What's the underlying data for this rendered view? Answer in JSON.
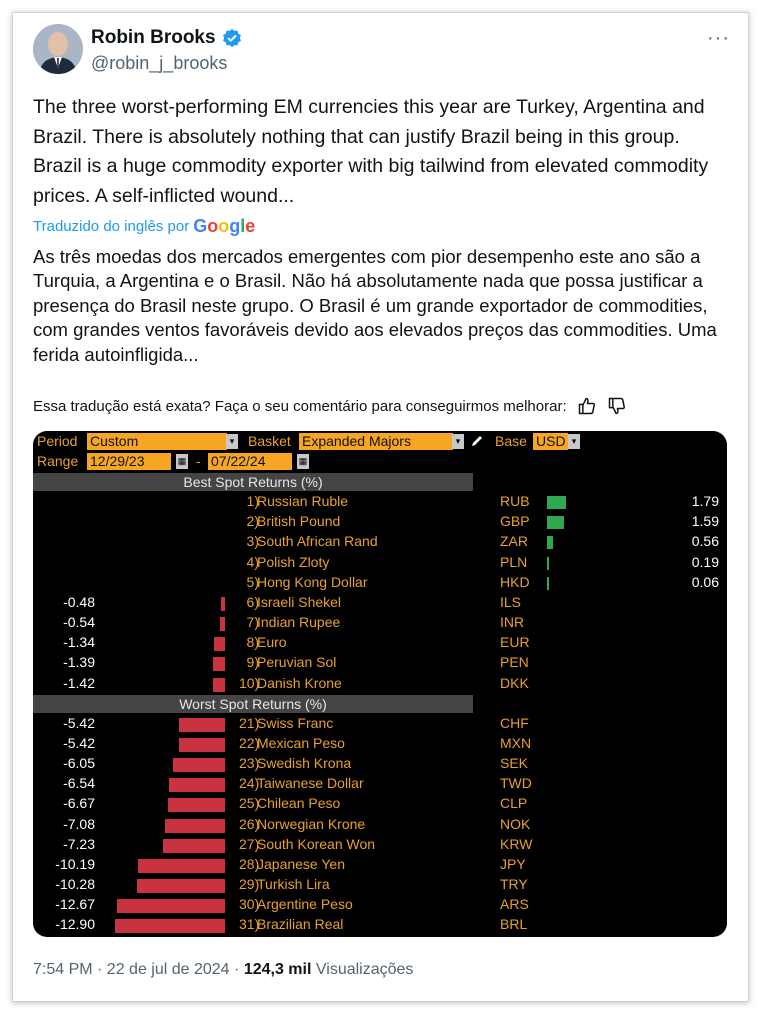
{
  "author": {
    "name": "Robin Brooks",
    "handle": "@robin_j_brooks",
    "verified": true
  },
  "more_label": "···",
  "tweet_text": "The three worst-performing EM currencies this year are Turkey, Argentina and Brazil. There is absolutely nothing that can justify Brazil being in this group. Brazil is a huge commodity exporter with big tailwind from elevated commodity prices. A self-inflicted wound...",
  "translation": {
    "label": "Traduzido do inglês por",
    "brand": "Google",
    "text": "As três moedas dos mercados emergentes com pior desempenho este ano são a Turquia, a Argentina e o Brasil. Não há absolutamente nada que possa justificar a presença do Brasil neste grupo. O Brasil é um grande exportador de commodities, com grandes ventos favoráveis devido aos elevados preços das commodities. Uma ferida autoinfligida...",
    "feedback_prompt": "Essa tradução está exata? Faça o seu comentário para conseguirmos melhorar:"
  },
  "terminal": {
    "period_label": "Period",
    "period_value": "Custom",
    "basket_label": "Basket",
    "basket_value": "Expanded Majors",
    "base_label": "Base",
    "base_value": "USD",
    "range_label": "Range",
    "range_start": "12/29/23",
    "range_sep": "-",
    "range_end": "07/22/24",
    "best_header": "Best Spot Returns (%)",
    "worst_header": "Worst Spot Returns (%)"
  },
  "chart_data": {
    "type": "bar",
    "best": [
      {
        "rank": "1)",
        "name": "Russian Ruble",
        "code": "RUB",
        "value": 1.79
      },
      {
        "rank": "2)",
        "name": "British Pound",
        "code": "GBP",
        "value": 1.59
      },
      {
        "rank": "3)",
        "name": "South African Rand",
        "code": "ZAR",
        "value": 0.56
      },
      {
        "rank": "4)",
        "name": "Polish Zloty",
        "code": "PLN",
        "value": 0.19
      },
      {
        "rank": "5)",
        "name": "Hong Kong Dollar",
        "code": "HKD",
        "value": 0.06
      },
      {
        "rank": "6)",
        "name": "Israeli Shekel",
        "code": "ILS",
        "value": -0.48
      },
      {
        "rank": "7)",
        "name": "Indian Rupee",
        "code": "INR",
        "value": -0.54
      },
      {
        "rank": "8)",
        "name": "Euro",
        "code": "EUR",
        "value": -1.34
      },
      {
        "rank": "9)",
        "name": "Peruvian Sol",
        "code": "PEN",
        "value": -1.39
      },
      {
        "rank": "10)",
        "name": "Danish Krone",
        "code": "DKK",
        "value": -1.42
      }
    ],
    "worst": [
      {
        "rank": "21)",
        "name": "Swiss Franc",
        "code": "CHF",
        "value": -5.42
      },
      {
        "rank": "22)",
        "name": "Mexican Peso",
        "code": "MXN",
        "value": -5.42
      },
      {
        "rank": "23)",
        "name": "Swedish Krona",
        "code": "SEK",
        "value": -6.05
      },
      {
        "rank": "24)",
        "name": "Taiwanese Dollar",
        "code": "TWD",
        "value": -6.54
      },
      {
        "rank": "25)",
        "name": "Chilean Peso",
        "code": "CLP",
        "value": -6.67
      },
      {
        "rank": "26)",
        "name": "Norwegian Krone",
        "code": "NOK",
        "value": -7.08
      },
      {
        "rank": "27)",
        "name": "South Korean Won",
        "code": "KRW",
        "value": -7.23
      },
      {
        "rank": "28)",
        "name": "Japanese Yen",
        "code": "JPY",
        "value": -10.19
      },
      {
        "rank": "29)",
        "name": "Turkish Lira",
        "code": "TRY",
        "value": -10.28
      },
      {
        "rank": "30)",
        "name": "Argentine Peso",
        "code": "ARS",
        "value": -12.67
      },
      {
        "rank": "31)",
        "name": "Brazilian Real",
        "code": "BRL",
        "value": -12.9
      }
    ],
    "colors": {
      "positive": "#2fa84f",
      "negative": "#c8333f"
    }
  },
  "footer": {
    "time": "7:54 PM · 22 de jul de 2024 ·",
    "views_count": "124,3 mil",
    "views_label": "Visualizações"
  }
}
